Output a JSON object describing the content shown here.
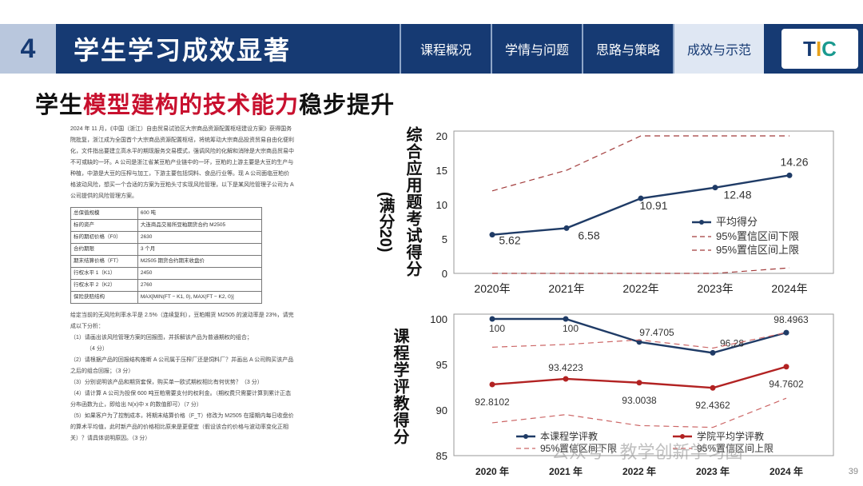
{
  "header": {
    "section_number": "4",
    "section_title": "学生学习成效显著",
    "tabs": [
      {
        "label": "课程概况",
        "active": false
      },
      {
        "label": "学情与问题",
        "active": false
      },
      {
        "label": "思路与策略",
        "active": false
      },
      {
        "label": "成效与示范",
        "active": true
      }
    ],
    "logo": "TIC"
  },
  "title": {
    "prefix": "学生",
    "highlight": "模型建构的技术能力",
    "suffix": "稳步提升"
  },
  "doc": {
    "intro": "2024 年 11 月，《中国（浙江）自由贸易试验区大宗商品资源配置枢纽建设方案》获得国务院批复，浙江成为全国首个大宗商品资源配置枢纽，将统筹动大宗商品投资贸易自由化便利化，文件指出要建立高水平的期现服务交易模式，强调风险的化解和消除是大宗商品贸易中不可或缺的一环。A 公司是浙江省某豆粕产业链中的一环，豆粕的上游主要是大豆的生产与种植，中游是大豆的压榨与加工，下游主要包括饲料、食品行业等。现 A 公司面临豆粕价格波动风险，想买一个合适的方案为豆粕头寸实现风险管理，以下是某风险管理子公司为 A 公司提供的风险管理方案。",
    "table": [
      [
        "总保值规模",
        "600 吨"
      ],
      [
        "标的资产",
        "大连商品交易所豆粕期货合约 M2505"
      ],
      [
        "标的期初价格（F0）",
        "2630"
      ],
      [
        "合约期限",
        "3 个月"
      ],
      [
        "期末结算价格（FT）",
        "M2505 期货合约期末收盘价"
      ],
      [
        "行权水平 1（K1）",
        "2450"
      ],
      [
        "行权水平 2（K2）",
        "2760"
      ],
      [
        "保险获赔结构",
        "MAX[MIN(FT − K1, 0), MAX(FT − K2, 0)]"
      ]
    ],
    "para2": "给定当前的无风险利率水平是 2.5%（连续复利），豆粕期货 M2505 的波动率是 23%，请完成以下分析：",
    "questions": [
      "（1）请画出该风险管理方案的回报图，并拆解该产品为普通期权的组合；",
      "（4 分）",
      "（2）请根据产品的回报结构推断 A 公司属于压榨厂还是饲料厂？并画出 A 公司购买该产品之后的组合回报；（3 分）",
      "（3）分别说明该产品和期货套保，购买单一欧式期权相比有何优势？（3 分）",
      "（4）请计算 A 公司为投保 600 吨豆粕需要支付的权利金。（期权费只需要计算到累计正态分布函数为止，即给出 N(x)中 x 的数值即可）（7 分）",
      "（5）如果客户为了控制成本，将期末结算价格（F_T）修改为 M2505 在接期内每日收盘价的算术平均值，此时新产品的价格相比原来是更便宜（假设该合约价格与波动率变化正相关）？请具体说明原因。（3 分）"
    ]
  },
  "chart_data": [
    {
      "type": "line",
      "ylabel": "综合应用题考试得分",
      "ylabel2": "(满分20)",
      "categories": [
        "2020年",
        "2021年",
        "2022年",
        "2023年",
        "2024年"
      ],
      "ylim": [
        0,
        20
      ],
      "yticks": [
        0,
        5,
        10,
        15,
        20
      ],
      "series": [
        {
          "name": "平均得分",
          "values": [
            5.62,
            6.58,
            10.91,
            12.48,
            14.26
          ],
          "color": "#1f3b66",
          "style": "solid",
          "labels": [
            "5.62",
            "6.58",
            "10.91",
            "12.48",
            "14.26"
          ]
        },
        {
          "name": "95%置信区间下限",
          "values": [
            0,
            0,
            0,
            0,
            0.8
          ],
          "color": "#a23b3b",
          "style": "dashed"
        },
        {
          "name": "95%置信区间上限",
          "values": [
            12,
            15,
            20,
            20,
            20
          ],
          "color": "#a23b3b",
          "style": "dashed"
        }
      ],
      "legend_position": "bottom-right"
    },
    {
      "type": "line",
      "ylabel": "课程学评教得分",
      "categories": [
        "2020 年",
        "2021 年",
        "2022 年",
        "2023 年",
        "2024 年"
      ],
      "ylim": [
        85,
        100
      ],
      "yticks": [
        85,
        90,
        95,
        100
      ],
      "series": [
        {
          "name": "本课程学评教",
          "values": [
            100,
            100,
            97.4705,
            96.28,
            98.4963
          ],
          "color": "#1f3b66",
          "style": "solid",
          "labels": [
            "100",
            "100",
            "97.4705",
            "96.28",
            "98.4963"
          ]
        },
        {
          "name": "学院平均学评教",
          "values": [
            92.8102,
            93.4223,
            93.0038,
            92.4362,
            94.7602
          ],
          "color": "#b22222",
          "style": "solid",
          "labels": [
            "92.8102",
            "93.4223",
            "93.0038",
            "92.4362",
            "94.7602"
          ]
        },
        {
          "name": "95%置信区间下限",
          "values": [
            88.6,
            89.5,
            88.3,
            88.1,
            91.3
          ],
          "color": "#cc6666",
          "style": "dashed"
        },
        {
          "name": "95%置信区间上限",
          "values": [
            96.9,
            97.2,
            97.7,
            96.8,
            98.5
          ],
          "color": "#cc6666",
          "style": "dashed"
        }
      ],
      "legend_position": "bottom"
    }
  ],
  "watermark": "公众号 · 教学创新学习圈",
  "page_number": "39"
}
